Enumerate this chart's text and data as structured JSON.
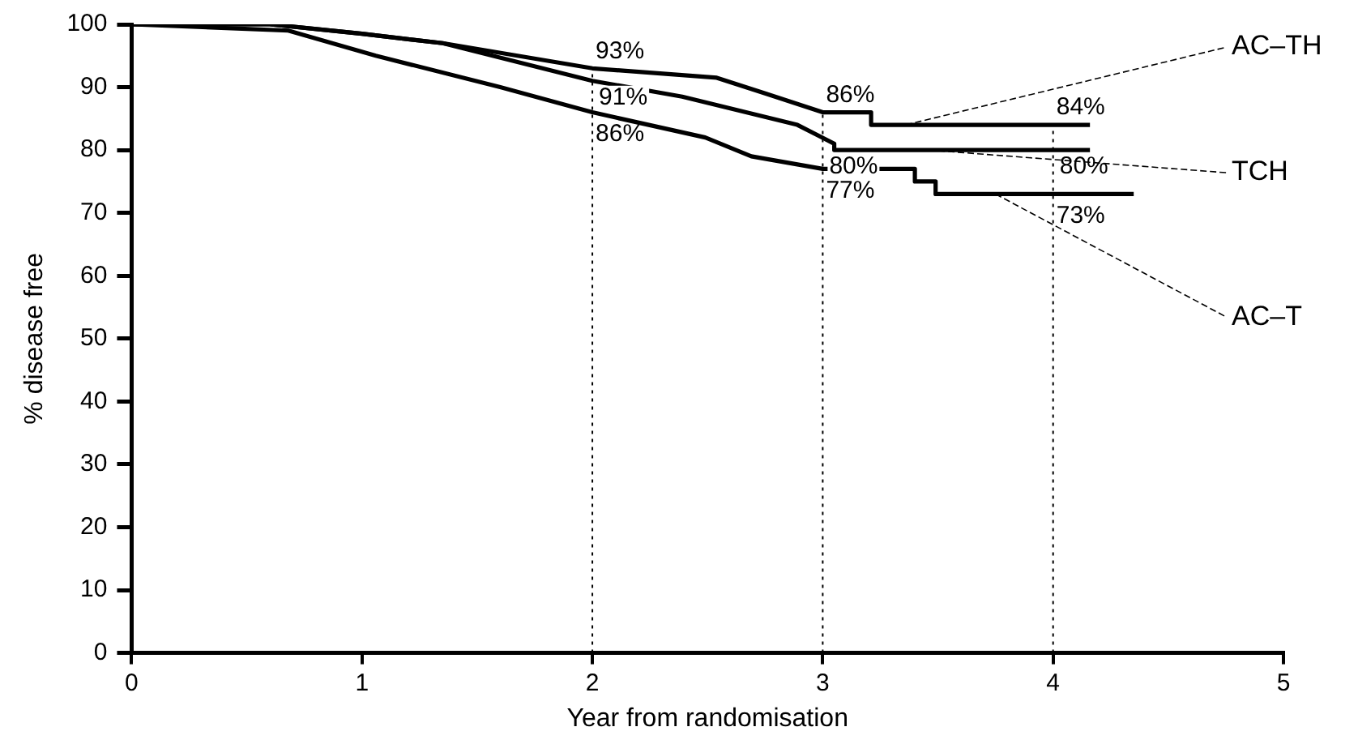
{
  "chart_data": {
    "type": "line",
    "xlabel": "Year from randomisation",
    "ylabel": "% disease free",
    "xlim": [
      0,
      5
    ],
    "xticks": [
      0,
      1,
      2,
      3,
      4,
      5
    ],
    "ylim": [
      0,
      100
    ],
    "yticks": [
      0,
      10,
      20,
      30,
      40,
      50,
      60,
      70,
      80,
      90,
      100
    ],
    "grid": false,
    "legend": false,
    "marker": "none",
    "line_style": "solid",
    "series": [
      {
        "name": "AC–TH",
        "color": "#000000",
        "x": [
          0,
          0.6,
          1.0,
          1.35,
          2,
          2.54,
          2.75,
          3.0,
          3.21,
          3.21,
          4.16
        ],
        "values": [
          100,
          100,
          98.5,
          97,
          93,
          91.5,
          89,
          86,
          86,
          84,
          84
        ]
      },
      {
        "name": "TCH",
        "color": "#000000",
        "x": [
          0,
          0.6,
          1.0,
          1.35,
          2,
          2.39,
          2.89,
          3.05,
          3.05,
          4.16
        ],
        "values": [
          100,
          100,
          98.5,
          97,
          91,
          88.5,
          84,
          81,
          80,
          80
        ]
      },
      {
        "name": "AC–T",
        "color": "#000000",
        "x": [
          0,
          0.68,
          1.06,
          1.6,
          2,
          2.49,
          2.69,
          3.0,
          3.4,
          3.4,
          3.49,
          3.49,
          4.35
        ],
        "values": [
          100,
          99,
          95,
          90,
          86,
          82,
          79,
          77,
          77,
          75,
          75,
          73,
          73
        ]
      }
    ],
    "ref_lines": [
      {
        "axis": "x",
        "value": 2,
        "line_style": "dotted"
      },
      {
        "axis": "x",
        "value": 3,
        "line_style": "dotted"
      },
      {
        "axis": "x",
        "value": 4,
        "line_style": "dotted"
      }
    ],
    "annotations": [
      {
        "text": "93%",
        "x": 2,
        "y": 93
      },
      {
        "text": "91%",
        "x": 2,
        "y": 91
      },
      {
        "text": "86%",
        "x": 2,
        "y": 86
      },
      {
        "text": "86%",
        "x": 3,
        "y": 86
      },
      {
        "text": "80%",
        "x": 3,
        "y": 80
      },
      {
        "text": "77%",
        "x": 3,
        "y": 77
      },
      {
        "text": "84%",
        "x": 4,
        "y": 84
      },
      {
        "text": "80%",
        "x": 4,
        "y": 80
      },
      {
        "text": "73%",
        "x": 4,
        "y": 73
      }
    ]
  }
}
